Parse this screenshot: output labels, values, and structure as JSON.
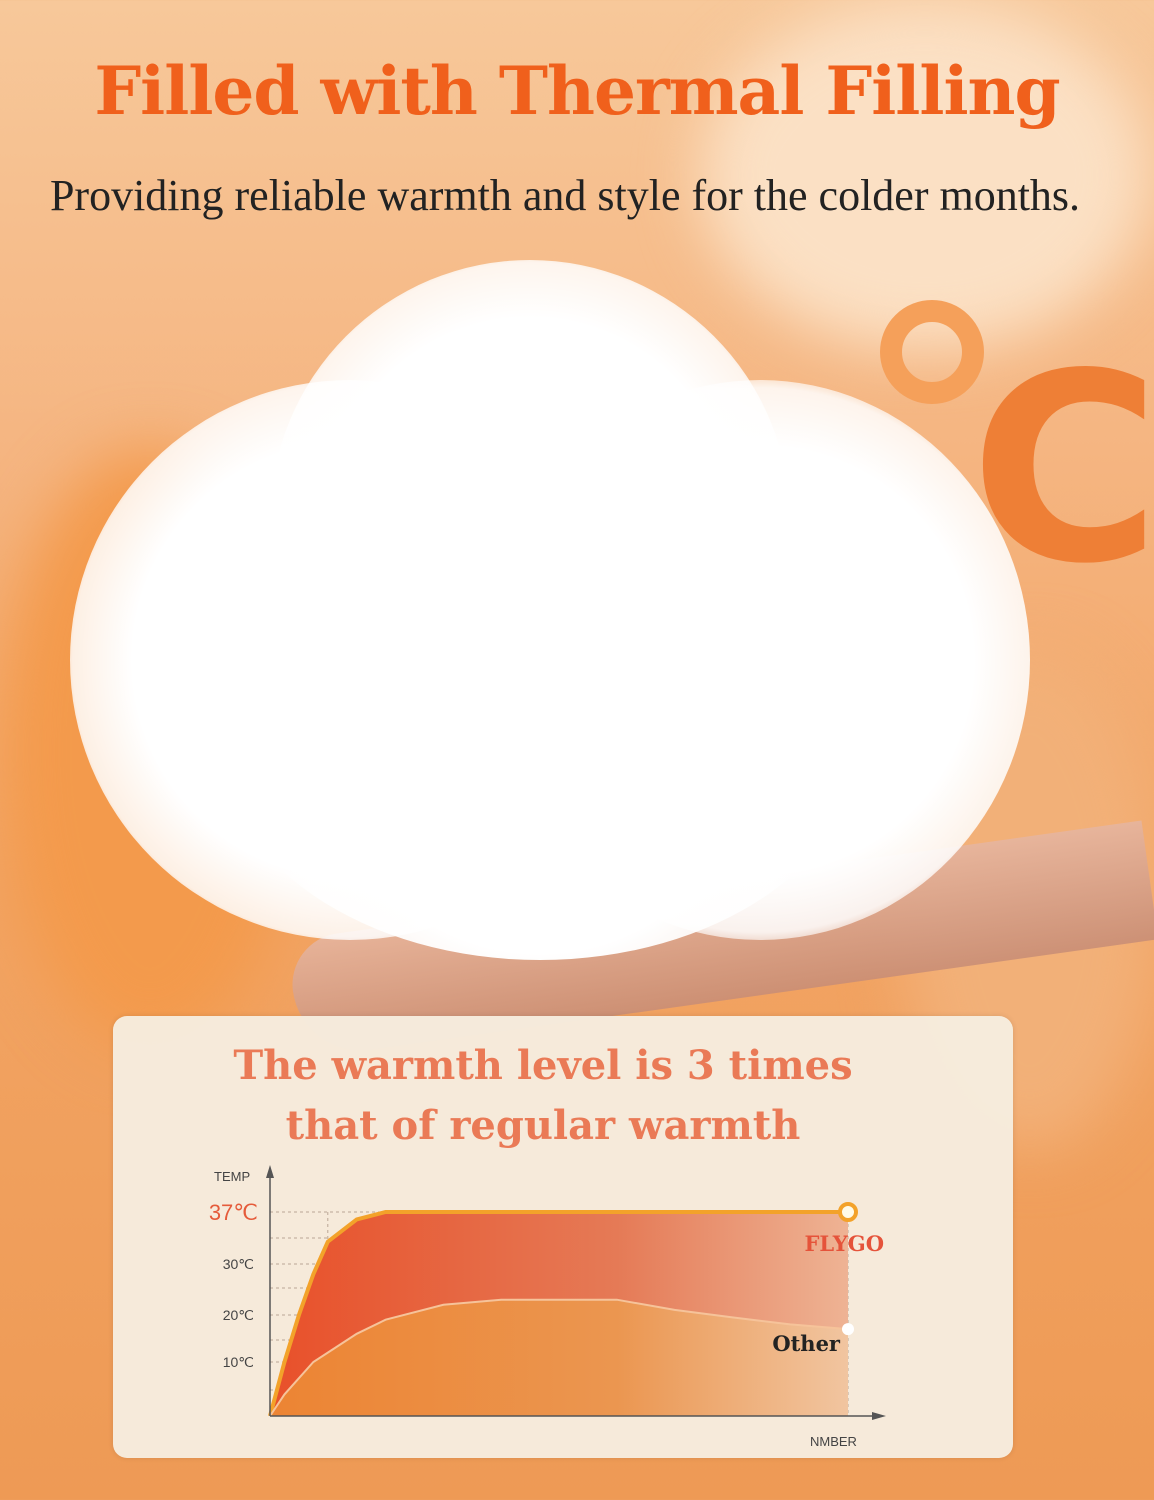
{
  "header": {
    "title": "Filled with Thermal Filling",
    "subtitle": "Providing reliable warmth and style for the colder months."
  },
  "decoration": {
    "degree_symbol": "°C"
  },
  "panel": {
    "headline_line1": "The warmth level is 3 times",
    "headline_line2": "that of regular warmth"
  },
  "colors": {
    "title": "#f0601c",
    "headline": "#ea7a56",
    "flygo_fill": "#e8502a",
    "other_fill": "#ec8a3c",
    "line": "#f3a22a"
  },
  "chart_data": {
    "type": "area",
    "title": "",
    "xlabel": "NMBER",
    "ylabel": "TEMP",
    "y_ticks": [
      "10℃",
      "20℃",
      "30℃",
      "37℃"
    ],
    "ylim": [
      0,
      37
    ],
    "grid": true,
    "x": [
      0,
      0.25,
      0.5,
      0.75,
      1,
      1.5,
      2,
      3,
      4,
      5,
      6,
      7,
      8,
      9,
      10
    ],
    "series": [
      {
        "name": "FLYGO",
        "values": [
          0,
          10,
          20,
          28,
          33,
          36,
          37,
          37,
          37,
          37,
          37,
          37,
          37,
          37,
          37
        ]
      },
      {
        "name": "Other",
        "values": [
          0,
          4,
          7,
          10,
          12,
          16,
          19,
          22,
          23,
          23,
          23,
          21,
          19.5,
          18,
          17
        ]
      }
    ]
  }
}
